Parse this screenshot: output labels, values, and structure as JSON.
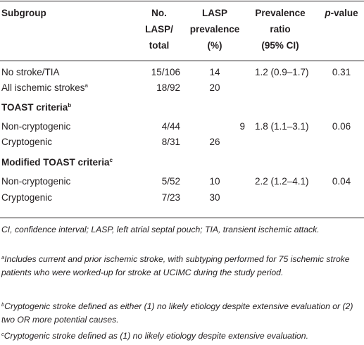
{
  "table": {
    "headers": {
      "subgroup": "Subgroup",
      "no_lasp_total": [
        "No.",
        "LASP/",
        "total"
      ],
      "lasp_prevalence": [
        "LASP",
        "prevalence",
        "(%)"
      ],
      "prevalence_ratio": [
        "Prevalence",
        "ratio",
        "(95% CI)"
      ],
      "p_value": [
        "p",
        "-value"
      ]
    },
    "rows": [
      {
        "label": "No stroke/TIA",
        "sup": "",
        "no_lasp_total": "15/106",
        "prevalence": "14",
        "ratio": "1.2 (0.9–1.7)",
        "p": "0.31"
      },
      {
        "label": "All ischemic strokes",
        "sup": "a",
        "no_lasp_total": "18/92",
        "prevalence": "20",
        "ratio": "",
        "p": ""
      }
    ],
    "sections": [
      {
        "title": "TOAST criteria",
        "sup": "b",
        "rows": [
          {
            "label": "Non-cryptogenic",
            "no_lasp_total": "4/44",
            "prevalence": "9",
            "ratio": "1.8 (1.1–3.1)",
            "p": "0.06"
          },
          {
            "label": "Cryptogenic",
            "no_lasp_total": "8/31",
            "prevalence": "26",
            "ratio": "",
            "p": ""
          }
        ]
      },
      {
        "title": "Modified TOAST criteria",
        "sup": "c",
        "rows": [
          {
            "label": "Non-cryptogenic",
            "no_lasp_total": "5/52",
            "prevalence": "10",
            "ratio": "2.2 (1.2–4.1)",
            "p": "0.04"
          },
          {
            "label": "Cryptogenic",
            "no_lasp_total": "7/23",
            "prevalence": "30",
            "ratio": "",
            "p": ""
          }
        ]
      }
    ]
  },
  "footnotes": {
    "abbreviations": "CI, confidence interval; LASP, left atrial septal pouch; TIA, transient ischemic attack.",
    "a": {
      "mark": "a",
      "text": "Includes current and prior ischemic stroke, with subtyping performed for 75 ischemic stroke patients who were worked-up for stroke at UCIMC during the study period."
    },
    "b": {
      "mark": "b",
      "text": "Cryptogenic stroke defined as either (1) no likely etiology despite extensive evaluation or (2) two OR more potential causes."
    },
    "c": {
      "mark": "c",
      "text": "Cryptogenic stroke defined as (1) no likely etiology despite extensive evaluation."
    }
  }
}
